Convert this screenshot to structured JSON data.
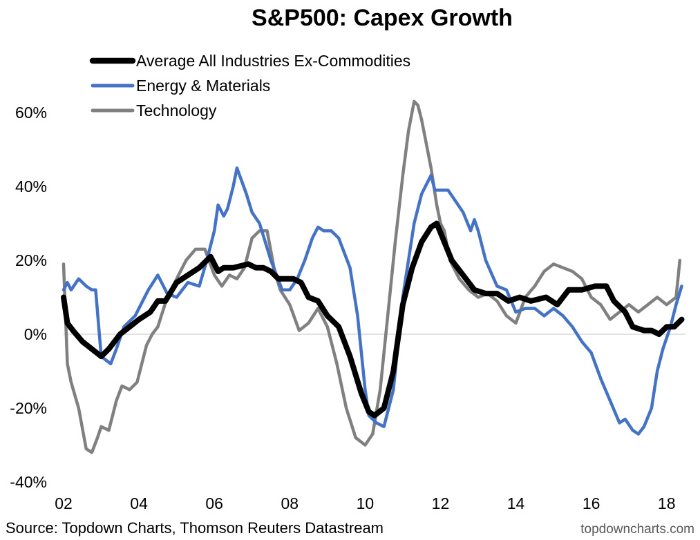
{
  "chart_data": {
    "type": "line",
    "title": "S&P500: Capex Growth",
    "xlabel": "",
    "ylabel": "",
    "x_tick_labels": [
      "02",
      "04",
      "06",
      "08",
      "10",
      "12",
      "14",
      "16",
      "18"
    ],
    "x_tick_years": [
      2002,
      2004,
      2006,
      2008,
      2010,
      2012,
      2014,
      2016,
      2018
    ],
    "xlim": [
      2002,
      2018.5
    ],
    "y_tick_labels": [
      "60%",
      "40%",
      "20%",
      "0%",
      "-20%",
      "-40%"
    ],
    "y_tick_values": [
      60,
      40,
      20,
      0,
      -20,
      -40
    ],
    "ylim": [
      -40,
      60
    ],
    "zero_line": true,
    "grid": false,
    "legend_position": "top-left",
    "series": [
      {
        "name": "Average All Industries Ex-Commodities",
        "color": "#000000",
        "x": [
          2002.0,
          2002.1,
          2002.25,
          2002.5,
          2002.75,
          2003.0,
          2003.2,
          2003.5,
          2003.75,
          2004.0,
          2004.3,
          2004.5,
          2004.7,
          2005.0,
          2005.3,
          2005.6,
          2005.9,
          2006.1,
          2006.25,
          2006.5,
          2006.9,
          2007.1,
          2007.3,
          2007.5,
          2007.7,
          2007.9,
          2008.1,
          2008.3,
          2008.5,
          2008.75,
          2009.0,
          2009.3,
          2009.6,
          2009.9,
          2010.1,
          2010.25,
          2010.5,
          2010.75,
          2011.0,
          2011.25,
          2011.5,
          2011.75,
          2011.9,
          2012.1,
          2012.3,
          2012.6,
          2012.9,
          2013.2,
          2013.5,
          2013.8,
          2014.1,
          2014.4,
          2014.8,
          2015.1,
          2015.4,
          2015.75,
          2016.1,
          2016.4,
          2016.6,
          2016.8,
          2016.9,
          2017.1,
          2017.4,
          2017.6,
          2017.8,
          2018.0,
          2018.2,
          2018.4
        ],
        "values": [
          10,
          3,
          1,
          -2,
          -4,
          -6,
          -4,
          0,
          2,
          4,
          6,
          9,
          9,
          14,
          16,
          18,
          21,
          17,
          18,
          18,
          19,
          18,
          18,
          17,
          15,
          15,
          15,
          14,
          10,
          9,
          5,
          2,
          -6,
          -16,
          -21,
          -22,
          -20,
          -10,
          8,
          18,
          25,
          29,
          30,
          25,
          20,
          16,
          12,
          11,
          11,
          9,
          10,
          9,
          10,
          8,
          12,
          12,
          13,
          13,
          9,
          7,
          6,
          2,
          1,
          1,
          0,
          2,
          2,
          4
        ]
      },
      {
        "name": "Energy & Materials",
        "color": "#4472c4",
        "x": [
          2002.0,
          2002.1,
          2002.2,
          2002.4,
          2002.6,
          2002.75,
          2002.85,
          2003.0,
          2003.25,
          2003.4,
          2003.6,
          2003.9,
          2004.25,
          2004.5,
          2004.75,
          2005.0,
          2005.3,
          2005.6,
          2005.8,
          2006.0,
          2006.1,
          2006.25,
          2006.35,
          2006.5,
          2006.6,
          2006.85,
          2007.0,
          2007.2,
          2007.5,
          2007.8,
          2008.0,
          2008.2,
          2008.4,
          2008.6,
          2008.75,
          2008.9,
          2009.1,
          2009.3,
          2009.6,
          2009.8,
          2010.0,
          2010.1,
          2010.3,
          2010.5,
          2010.75,
          2011.0,
          2011.3,
          2011.5,
          2011.75,
          2011.85,
          2012.0,
          2012.2,
          2012.4,
          2012.6,
          2012.8,
          2012.9,
          2013.0,
          2013.2,
          2013.5,
          2013.75,
          2014.0,
          2014.25,
          2014.5,
          2014.75,
          2015.0,
          2015.25,
          2015.5,
          2015.75,
          2016.0,
          2016.25,
          2016.5,
          2016.75,
          2016.9,
          2017.1,
          2017.25,
          2017.4,
          2017.6,
          2017.75,
          2017.9,
          2018.1,
          2018.25,
          2018.4
        ],
        "values": [
          12,
          14,
          12,
          15,
          13,
          12,
          12,
          -6,
          -8,
          -4,
          2,
          5,
          12,
          16,
          11,
          10,
          14,
          13,
          20,
          28,
          35,
          32,
          34,
          40,
          45,
          38,
          33,
          30,
          20,
          12,
          12,
          15,
          20,
          26,
          29,
          28,
          28,
          26,
          18,
          5,
          -15,
          -22,
          -24,
          -25,
          -15,
          10,
          30,
          38,
          43,
          39,
          39,
          39,
          36,
          33,
          28,
          31,
          28,
          20,
          13,
          12,
          6,
          7,
          7,
          5,
          7,
          5,
          2,
          -2,
          -5,
          -12,
          -18,
          -24,
          -23,
          -26,
          -27,
          -25,
          -20,
          -10,
          -4,
          2,
          8,
          13
        ]
      },
      {
        "name": "Technology",
        "color": "#808080",
        "x": [
          2002.0,
          2002.1,
          2002.2,
          2002.4,
          2002.6,
          2002.75,
          2002.9,
          2003.0,
          2003.2,
          2003.4,
          2003.55,
          2003.75,
          2003.95,
          2004.2,
          2004.35,
          2004.5,
          2004.75,
          2005.0,
          2005.25,
          2005.5,
          2005.75,
          2006.0,
          2006.2,
          2006.4,
          2006.6,
          2006.8,
          2007.0,
          2007.2,
          2007.4,
          2007.6,
          2007.75,
          2008.0,
          2008.25,
          2008.5,
          2008.75,
          2009.0,
          2009.25,
          2009.5,
          2009.75,
          2010.0,
          2010.2,
          2010.4,
          2010.6,
          2010.8,
          2011.0,
          2011.15,
          2011.3,
          2011.4,
          2011.5,
          2011.75,
          2011.9,
          2012.0,
          2012.1,
          2012.25,
          2012.5,
          2012.75,
          2013.0,
          2013.25,
          2013.5,
          2013.75,
          2014.0,
          2014.25,
          2014.5,
          2014.75,
          2015.0,
          2015.25,
          2015.5,
          2015.75,
          2016.0,
          2016.25,
          2016.5,
          2016.75,
          2017.0,
          2017.25,
          2017.5,
          2017.75,
          2018.0,
          2018.25,
          2018.35
        ],
        "values": [
          19,
          -8,
          -13,
          -20,
          -31,
          -32,
          -28,
          -25,
          -26,
          -18,
          -14,
          -15,
          -13,
          -3,
          0,
          2,
          10,
          15,
          20,
          23,
          23,
          16,
          13,
          16,
          15,
          18,
          26,
          28,
          28,
          17,
          12,
          8,
          1,
          3,
          7,
          2,
          -8,
          -20,
          -28,
          -30,
          -27,
          -15,
          5,
          25,
          43,
          55,
          63,
          62,
          58,
          45,
          35,
          30,
          28,
          20,
          15,
          12,
          10,
          11,
          9,
          5,
          3,
          10,
          13,
          17,
          19,
          18,
          17,
          15,
          10,
          8,
          4,
          6,
          8,
          6,
          8,
          10,
          8,
          10,
          20
        ]
      }
    ]
  },
  "footer": {
    "source": "Source: Topdown Charts, Thomson Reuters Datastream",
    "brand": "topdowncharts.com"
  }
}
